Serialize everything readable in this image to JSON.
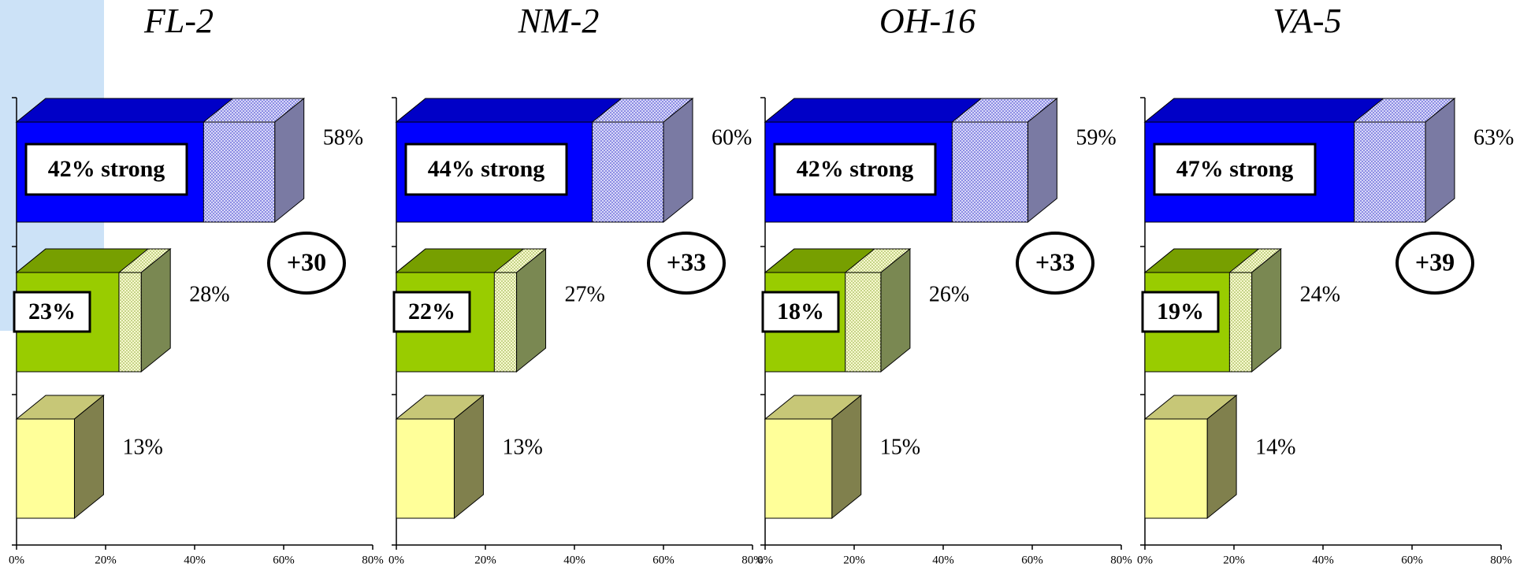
{
  "chart_data": [
    {
      "type": "bar3d",
      "title": "FL-2",
      "total": {
        "values": [
          58,
          28,
          13
        ],
        "value_labels": [
          "58%",
          "28%",
          "13%"
        ],
        "colors": [
          "#0000ff",
          "#99cc00",
          "#ffff99"
        ]
      },
      "strong": {
        "values": [
          42,
          23
        ],
        "value_labels": [
          "42% strong",
          "23%"
        ]
      },
      "annotation": "+30",
      "xlim": [
        0,
        80
      ],
      "xticks": [
        {
          "value": 0,
          "label": "0%"
        },
        {
          "value": 20,
          "label": "20%"
        },
        {
          "value": 40,
          "label": "40%"
        },
        {
          "value": 60,
          "label": "60%"
        },
        {
          "value": 80,
          "label": "80%"
        }
      ]
    },
    {
      "type": "bar3d",
      "title": "NM-2",
      "total": {
        "values": [
          60,
          27,
          13
        ],
        "value_labels": [
          "60%",
          "27%",
          "13%"
        ],
        "colors": [
          "#0000ff",
          "#99cc00",
          "#ffff99"
        ]
      },
      "strong": {
        "values": [
          44,
          22
        ],
        "value_labels": [
          "44% strong",
          "22%"
        ]
      },
      "annotation": "+33",
      "xlim": [
        0,
        80
      ],
      "xticks": [
        {
          "value": 0,
          "label": "0%"
        },
        {
          "value": 20,
          "label": "20%"
        },
        {
          "value": 40,
          "label": "40%"
        },
        {
          "value": 60,
          "label": "60%"
        },
        {
          "value": 80,
          "label": "80%"
        }
      ]
    },
    {
      "type": "bar3d",
      "title": "OH-16",
      "total": {
        "values": [
          59,
          26,
          15
        ],
        "value_labels": [
          "59%",
          "26%",
          "15%"
        ],
        "colors": [
          "#0000ff",
          "#99cc00",
          "#ffff99"
        ]
      },
      "strong": {
        "values": [
          42,
          18
        ],
        "value_labels": [
          "42% strong",
          "18%"
        ]
      },
      "annotation": "+33",
      "xlim": [
        0,
        80
      ],
      "xticks": [
        {
          "value": 0,
          "label": "0%"
        },
        {
          "value": 20,
          "label": "20%"
        },
        {
          "value": 40,
          "label": "40%"
        },
        {
          "value": 60,
          "label": "60%"
        },
        {
          "value": 80,
          "label": "80%"
        }
      ]
    },
    {
      "type": "bar3d",
      "title": "VA-5",
      "total": {
        "values": [
          63,
          24,
          14
        ],
        "value_labels": [
          "63%",
          "24%",
          "14%"
        ],
        "colors": [
          "#0000ff",
          "#99cc00",
          "#ffff99"
        ]
      },
      "strong": {
        "values": [
          47,
          19
        ],
        "value_labels": [
          "47% strong",
          "19%"
        ]
      },
      "annotation": "+39",
      "xlim": [
        0,
        80
      ],
      "xticks": [
        {
          "value": 0,
          "label": "0%"
        },
        {
          "value": 20,
          "label": "20%"
        },
        {
          "value": 40,
          "label": "40%"
        },
        {
          "value": 60,
          "label": "60%"
        },
        {
          "value": 80,
          "label": "80%"
        }
      ]
    }
  ]
}
